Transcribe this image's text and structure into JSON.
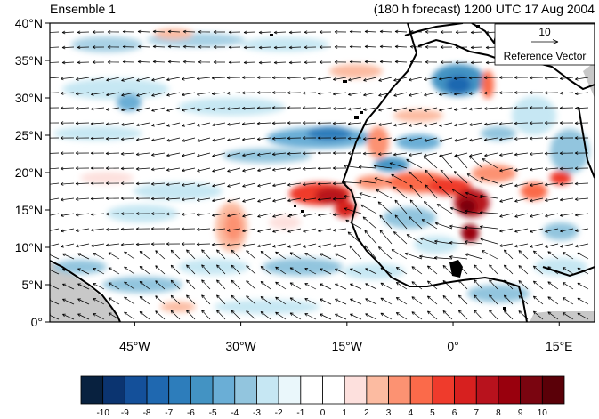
{
  "header": {
    "left_title": "Ensemble 1",
    "right_title": "(180 h forecast) 1200 UTC 17 Aug 2004"
  },
  "map": {
    "lon_range": [
      -57,
      20
    ],
    "lat_range": [
      0,
      40
    ],
    "lat_labels": [
      {
        "lat": 40,
        "text": "40°N"
      },
      {
        "lat": 35,
        "text": "35°N"
      },
      {
        "lat": 30,
        "text": "30°N"
      },
      {
        "lat": 25,
        "text": "25°N"
      },
      {
        "lat": 20,
        "text": "20°N"
      },
      {
        "lat": 15,
        "text": "15°N"
      },
      {
        "lat": 10,
        "text": "10°N"
      },
      {
        "lat": 5,
        "text": "5°N"
      },
      {
        "lat": 0,
        "text": "0°"
      }
    ],
    "lon_labels": [
      {
        "lon": -45,
        "text": "45°W"
      },
      {
        "lon": -30,
        "text": "30°W"
      },
      {
        "lon": -15,
        "text": "15°W"
      },
      {
        "lon": 0,
        "text": "0°"
      },
      {
        "lon": 15,
        "text": "15°E"
      }
    ],
    "land_color": "#c8c8c8"
  },
  "reference_vector": {
    "value": "10",
    "label": "Reference Vector"
  },
  "colorbar": {
    "colors": [
      "#08213f",
      "#0b3470",
      "#14509a",
      "#1f68b0",
      "#2d7dbb",
      "#4393c3",
      "#6aaed6",
      "#92c5de",
      "#c6e7f3",
      "#eaf7fb",
      "#ffffff",
      "#ffffff",
      "#fde0dd",
      "#fcbba1",
      "#fc9272",
      "#fb6a4a",
      "#ef3b2c",
      "#d7201f",
      "#b8121d",
      "#99000d",
      "#7a0510",
      "#5a0008"
    ],
    "labels": [
      "-10",
      "-9",
      "-8",
      "-7",
      "-6",
      "-5",
      "-4",
      "-3",
      "-2",
      "-1",
      "0",
      "1",
      "2",
      "3",
      "4",
      "5",
      "6",
      "7",
      "8",
      "9",
      "10"
    ]
  }
}
